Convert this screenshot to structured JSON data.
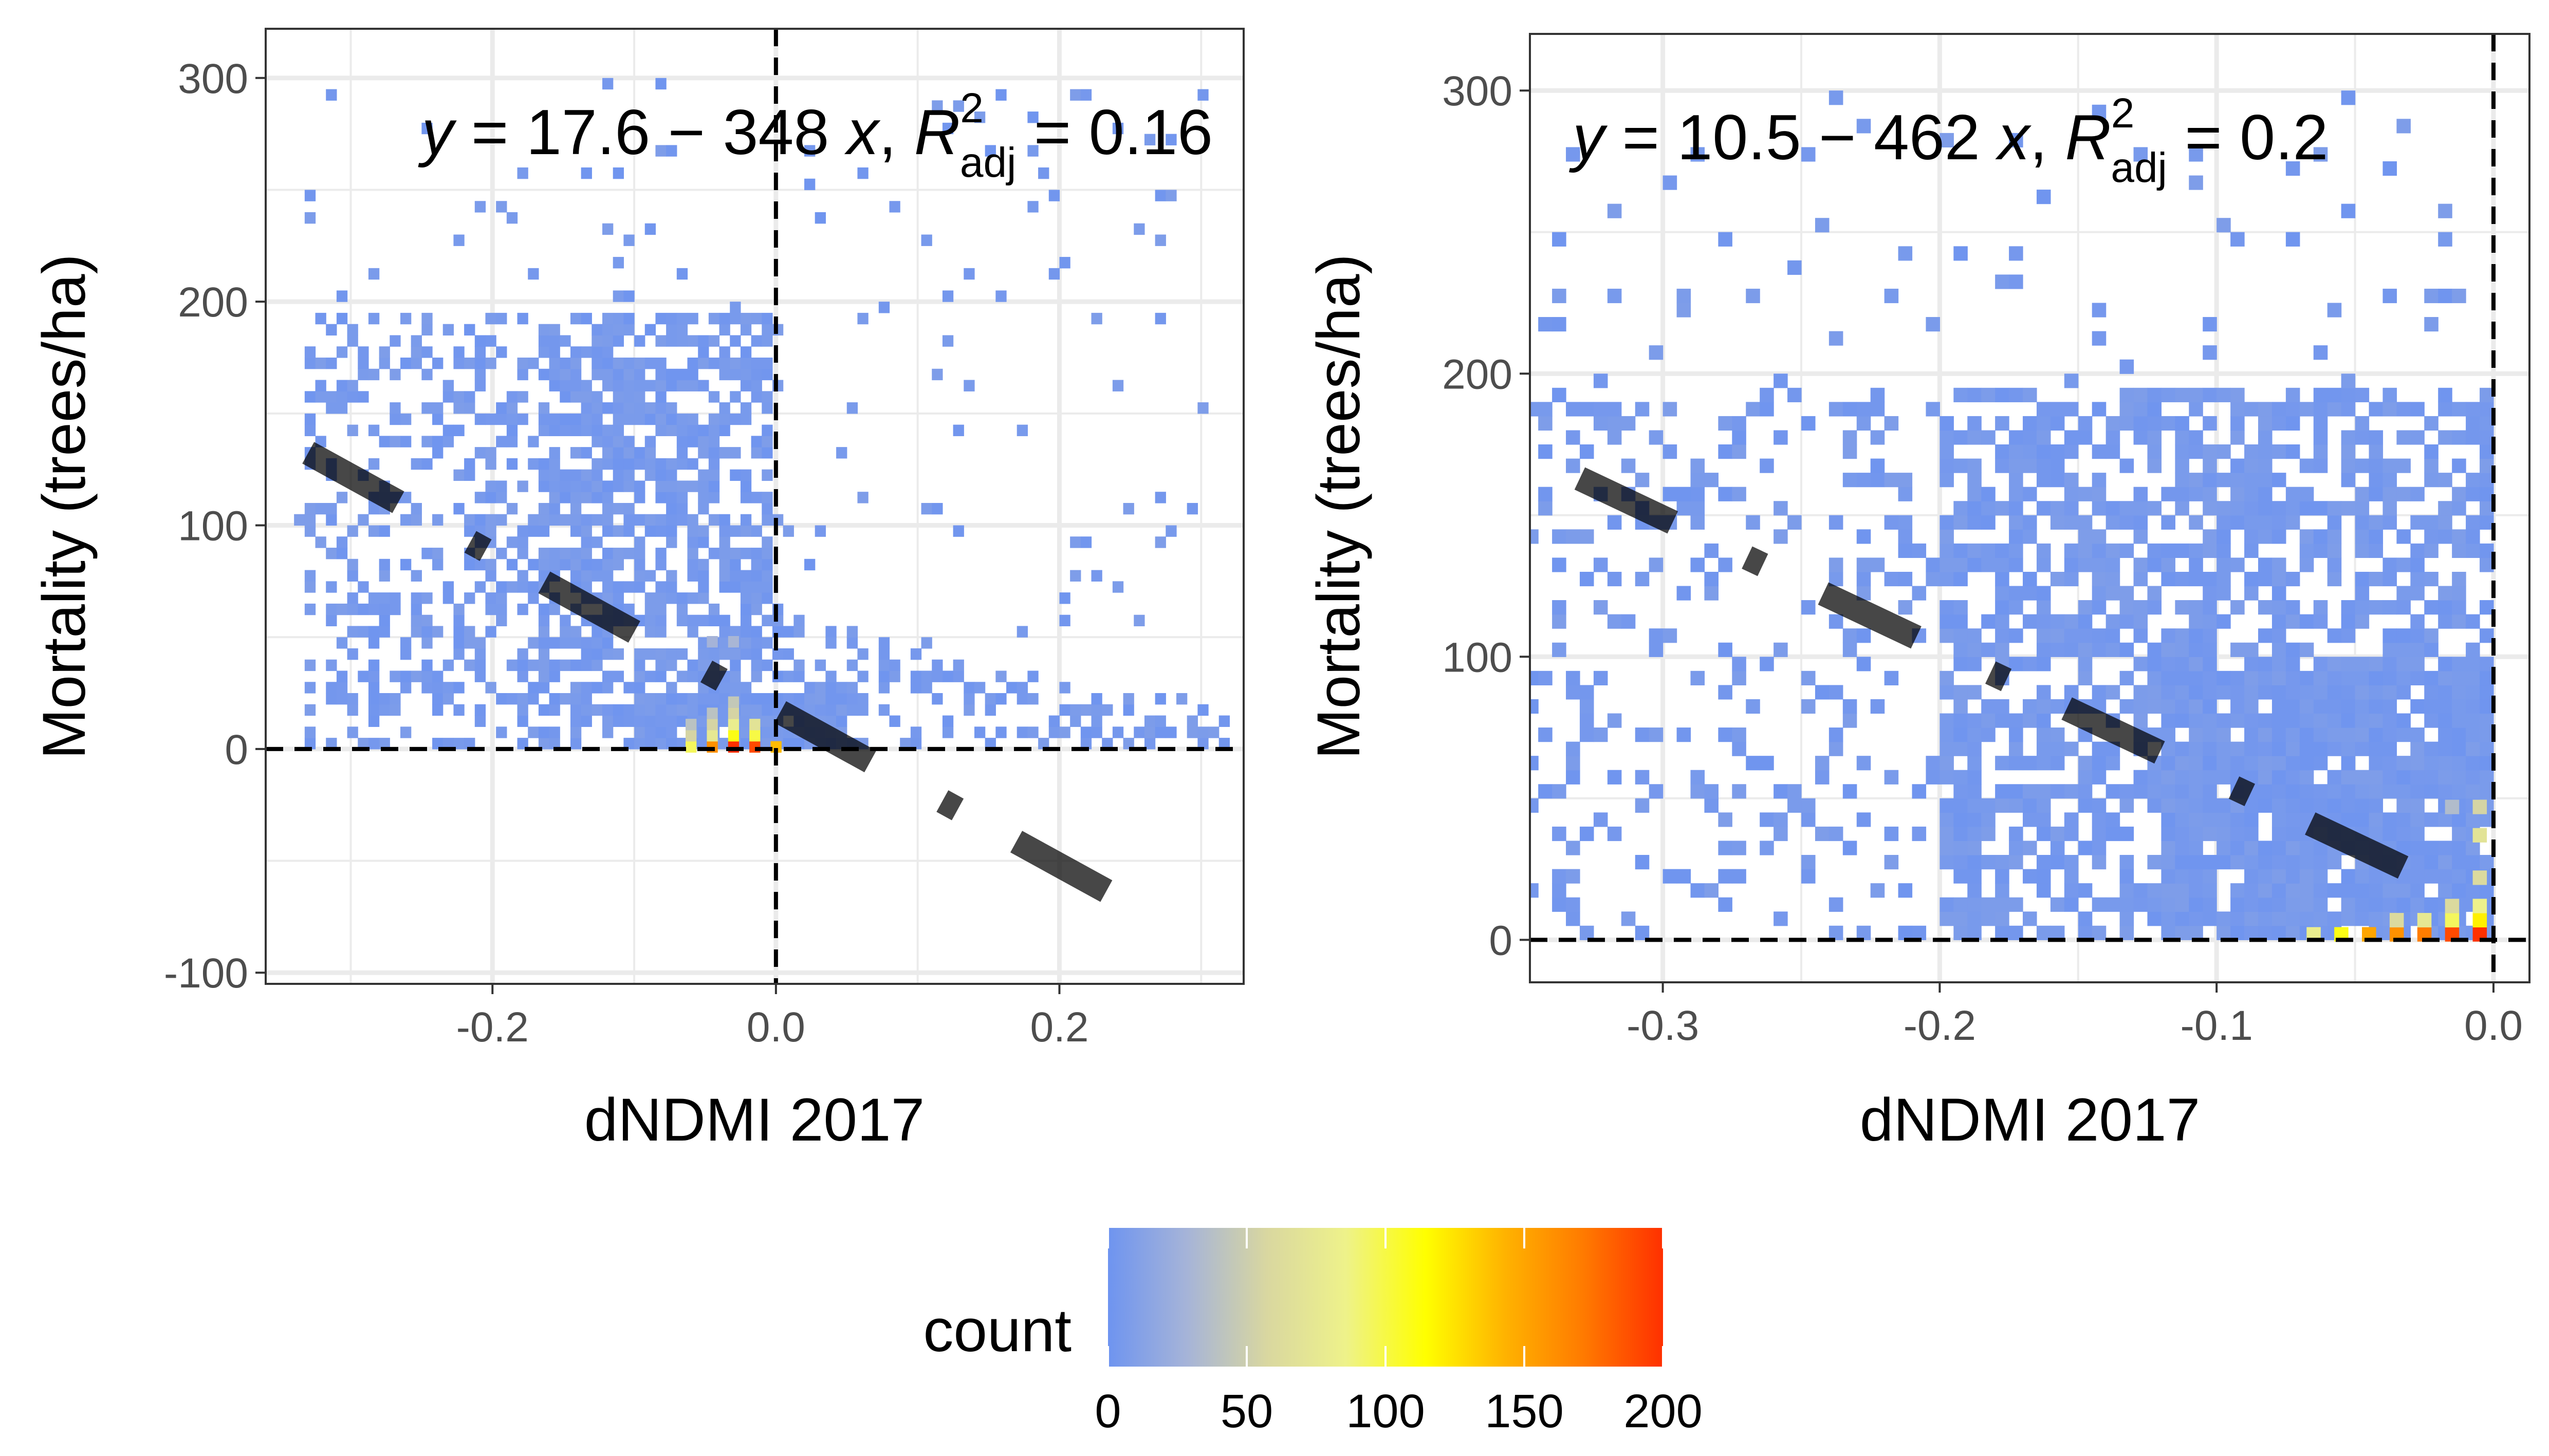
{
  "chart_data": [
    {
      "type": "heatmap",
      "panel": "left",
      "xlabel": "dNDMI 2017",
      "ylabel": "Mortality (trees/ha)",
      "xlim": [
        -0.36,
        0.33
      ],
      "ylim": [
        -105,
        322
      ],
      "x_ticks": [
        -0.2,
        0.0,
        0.2
      ],
      "x_tick_labels": [
        "-0.2",
        "0.0",
        "0.2"
      ],
      "y_ticks": [
        -100,
        0,
        100,
        200,
        300
      ],
      "y_tick_labels": [
        "-100",
        "0",
        "100",
        "200",
        "300"
      ],
      "grid": true,
      "reference_lines": {
        "x": 0,
        "y": 0,
        "style": "dashed"
      },
      "annotation": {
        "y": "y",
        "eq_a": " = 17.6 − 348 ",
        "x": "x",
        "sep": ", ",
        "R": "R",
        "sup": "2",
        "sub": "adj",
        "tail": " = 0.16"
      },
      "fit": {
        "intercept": 17.6,
        "slope": -348,
        "r2_adj": 0.16,
        "x_range": [
          -0.33,
          0.25
        ]
      },
      "bin_cell": {
        "w": 0.0075,
        "h": 5
      },
      "density_sample": [
        {
          "x": -0.03,
          "y": 1,
          "count": 200
        },
        {
          "x": -0.015,
          "y": 1,
          "count": 190
        },
        {
          "x": -0.045,
          "y": 1,
          "count": 160
        },
        {
          "x": -0.06,
          "y": 1,
          "count": 95
        },
        {
          "x": 0.0,
          "y": 1,
          "count": 140
        },
        {
          "x": -0.03,
          "y": 6,
          "count": 110
        },
        {
          "x": -0.015,
          "y": 6,
          "count": 100
        },
        {
          "x": -0.045,
          "y": 6,
          "count": 75
        },
        {
          "x": -0.03,
          "y": 11,
          "count": 80
        },
        {
          "x": -0.015,
          "y": 11,
          "count": 70
        },
        {
          "x": -0.045,
          "y": 11,
          "count": 55
        },
        {
          "x": -0.06,
          "y": 6,
          "count": 55
        },
        {
          "x": -0.03,
          "y": 16,
          "count": 55
        },
        {
          "x": -0.045,
          "y": 16,
          "count": 40
        },
        {
          "x": -0.03,
          "y": 21,
          "count": 45
        },
        {
          "x": -0.06,
          "y": 11,
          "count": 40
        },
        {
          "x": -0.03,
          "y": 48,
          "count": 30
        },
        {
          "x": -0.045,
          "y": 48,
          "count": 28
        }
      ]
    },
    {
      "type": "heatmap",
      "panel": "right",
      "xlabel": "dNDMI 2017",
      "ylabel": "Mortality (trees/ha)",
      "xlim": [
        -0.348,
        0.013
      ],
      "ylim": [
        -15,
        320
      ],
      "x_ticks": [
        -0.3,
        -0.2,
        -0.1,
        0.0
      ],
      "x_tick_labels": [
        "-0.3",
        "-0.2",
        "-0.1",
        "0.0"
      ],
      "y_ticks": [
        0,
        100,
        200,
        300
      ],
      "y_tick_labels": [
        "0",
        "100",
        "200",
        "300"
      ],
      "grid": true,
      "reference_lines": {
        "x": 0,
        "y": 0,
        "style": "dashed"
      },
      "annotation": {
        "y": "y",
        "eq_a": " = 10.5 − 462 ",
        "x": "x",
        "sep": ", ",
        "R": "R",
        "sup": "2",
        "sub": "adj",
        "tail": " = 0.2"
      },
      "fit": {
        "intercept": 10.5,
        "slope": -462,
        "r2_adj": 0.2,
        "x_range": [
          -0.33,
          -0.025
        ]
      },
      "bin_cell": {
        "w": 0.005,
        "h": 5
      },
      "density_sample": [
        {
          "x": -0.005,
          "y": 2,
          "count": 200
        },
        {
          "x": -0.015,
          "y": 2,
          "count": 190
        },
        {
          "x": -0.025,
          "y": 2,
          "count": 170
        },
        {
          "x": -0.035,
          "y": 2,
          "count": 160
        },
        {
          "x": -0.045,
          "y": 2,
          "count": 150
        },
        {
          "x": -0.055,
          "y": 2,
          "count": 110
        },
        {
          "x": -0.065,
          "y": 2,
          "count": 80
        },
        {
          "x": -0.005,
          "y": 7,
          "count": 120
        },
        {
          "x": -0.015,
          "y": 7,
          "count": 95
        },
        {
          "x": -0.025,
          "y": 7,
          "count": 75
        },
        {
          "x": -0.035,
          "y": 7,
          "count": 60
        },
        {
          "x": -0.005,
          "y": 12,
          "count": 85
        },
        {
          "x": -0.015,
          "y": 12,
          "count": 60
        },
        {
          "x": -0.005,
          "y": 22,
          "count": 60
        },
        {
          "x": -0.005,
          "y": 37,
          "count": 70
        },
        {
          "x": -0.005,
          "y": 47,
          "count": 55
        },
        {
          "x": -0.015,
          "y": 47,
          "count": 35
        }
      ]
    }
  ],
  "legend": {
    "title": "count",
    "colors": [
      "#6e94f0",
      "#a6b4d8",
      "#d9d7a0",
      "#eef28a",
      "#ffff00",
      "#ffb300",
      "#ff7a00",
      "#ff3000"
    ],
    "ticks": [
      0,
      50,
      100,
      150,
      200
    ],
    "tick_labels": [
      "0",
      "50",
      "100",
      "150",
      "200"
    ]
  },
  "colors": {
    "low": "#a2b9ef",
    "fit_line": "#000000",
    "reference_line": "#000000",
    "grid": "#ebebeb",
    "panel_border": "#333333"
  }
}
